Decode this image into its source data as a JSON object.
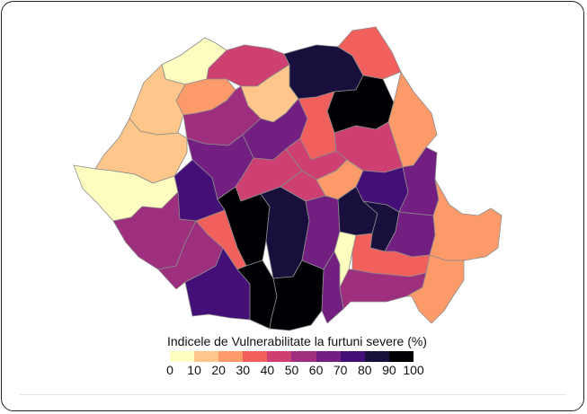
{
  "legend": {
    "title": "Indicele de Vulnerabilitate la furtuni severe (%)",
    "ticks": [
      "0",
      "10",
      "20",
      "30",
      "40",
      "50",
      "60",
      "70",
      "80",
      "90",
      "100"
    ],
    "colors": [
      "#fcfdbf",
      "#fec68a",
      "#fd9a6a",
      "#f1605d",
      "#cd4071",
      "#9e2f7f",
      "#721f81",
      "#440f76",
      "#180f3d",
      "#000004"
    ]
  },
  "counties": [
    {
      "name": "satu-mare",
      "value": 5
    },
    {
      "name": "maramures",
      "value": 45
    },
    {
      "name": "suceava",
      "value": 85
    },
    {
      "name": "botosani",
      "value": 35
    },
    {
      "name": "bihor",
      "value": 15
    },
    {
      "name": "salaj",
      "value": 25
    },
    {
      "name": "bistrita-nasaud",
      "value": 15
    },
    {
      "name": "iasi",
      "value": 95
    },
    {
      "name": "cluj",
      "value": 55
    },
    {
      "name": "mures",
      "value": 65
    },
    {
      "name": "neamt",
      "value": 35
    },
    {
      "name": "vaslui",
      "value": 25
    },
    {
      "name": "arad",
      "value": 15
    },
    {
      "name": "alba",
      "value": 65
    },
    {
      "name": "harghita",
      "value": 45
    },
    {
      "name": "bacau",
      "value": 45
    },
    {
      "name": "timis",
      "value": 5
    },
    {
      "name": "hunedoara",
      "value": 75
    },
    {
      "name": "sibiu",
      "value": 45
    },
    {
      "name": "brasov",
      "value": 45
    },
    {
      "name": "covasna",
      "value": 25
    },
    {
      "name": "vrancea",
      "value": 75
    },
    {
      "name": "galati",
      "value": 65
    },
    {
      "name": "caras-severin",
      "value": 55
    },
    {
      "name": "valcea",
      "value": 95
    },
    {
      "name": "arges",
      "value": 85
    },
    {
      "name": "dambovita",
      "value": 65
    },
    {
      "name": "prahova",
      "value": 85
    },
    {
      "name": "buzau",
      "value": 85
    },
    {
      "name": "braila",
      "value": 65
    },
    {
      "name": "tulcea",
      "value": 25
    },
    {
      "name": "mehedinti",
      "value": 55
    },
    {
      "name": "gorj",
      "value": 35
    },
    {
      "name": "dolj",
      "value": 75
    },
    {
      "name": "olt",
      "value": 95
    },
    {
      "name": "teleorman",
      "value": 95
    },
    {
      "name": "giurgiu",
      "value": 65
    },
    {
      "name": "ilfov",
      "value": 5
    },
    {
      "name": "ialomita",
      "value": 35
    },
    {
      "name": "calarasi",
      "value": 55
    },
    {
      "name": "constanta",
      "value": 25
    }
  ]
}
